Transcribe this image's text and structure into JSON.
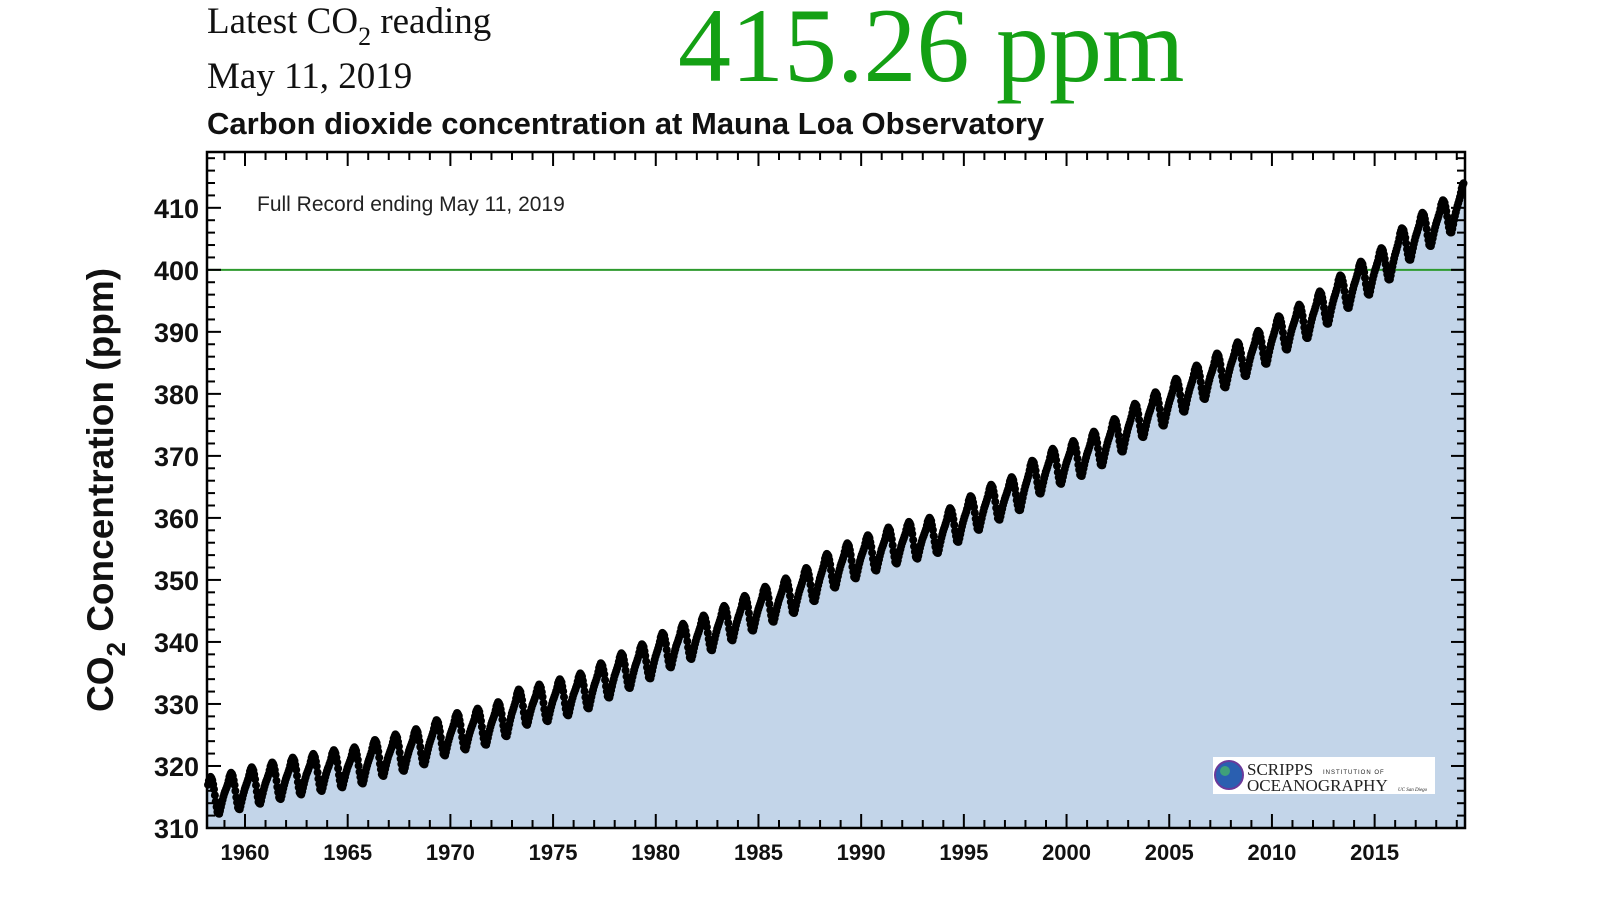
{
  "header": {
    "latest_label_pre": "Latest CO",
    "latest_label_sub": "2",
    "latest_label_post": " reading",
    "date": "May 11, 2019",
    "latest_value": "415.26 ppm",
    "value_color": "#14a014"
  },
  "chart_data": {
    "type": "scatter",
    "title": "Carbon dioxide concentration at Mauna Loa Observatory",
    "annotation": "Full Record ending May 11, 2019",
    "xlabel": "",
    "ylabel_pre": "CO",
    "ylabel_sub": "2",
    "ylabel_post": " Concentration (ppm)",
    "xlim": [
      1958.15,
      2019.4
    ],
    "ylim": [
      310,
      419
    ],
    "x_ticks": [
      1960,
      1965,
      1970,
      1975,
      1980,
      1985,
      1990,
      1995,
      2000,
      2005,
      2010,
      2015
    ],
    "x_tick_labels": [
      "1960",
      "1965",
      "1970",
      "1975",
      "1980",
      "1985",
      "1990",
      "1995",
      "2000",
      "2005",
      "2010",
      "2015"
    ],
    "y_ticks": [
      310,
      320,
      330,
      340,
      350,
      360,
      370,
      380,
      390,
      400,
      410
    ],
    "y_tick_labels": [
      "310",
      "320",
      "330",
      "340",
      "350",
      "360",
      "370",
      "380",
      "390",
      "400",
      "410"
    ],
    "reference_line": {
      "y": 400,
      "color": "#2e9a2e"
    },
    "fill_color": "#c3d5e9",
    "marker_color": "#000000",
    "grid": false,
    "series_years": [
      1958,
      1959,
      1960,
      1961,
      1962,
      1963,
      1964,
      1965,
      1966,
      1967,
      1968,
      1969,
      1970,
      1971,
      1972,
      1973,
      1974,
      1975,
      1976,
      1977,
      1978,
      1979,
      1980,
      1981,
      1982,
      1983,
      1984,
      1985,
      1986,
      1987,
      1988,
      1989,
      1990,
      1991,
      1992,
      1993,
      1994,
      1995,
      1996,
      1997,
      1998,
      1999,
      2000,
      2001,
      2002,
      2003,
      2004,
      2005,
      2006,
      2007,
      2008,
      2009,
      2010,
      2011,
      2012,
      2013,
      2014,
      2015,
      2016,
      2017,
      2018,
      2019
    ],
    "annual_mean_ppm": [
      315.3,
      315.97,
      316.91,
      317.64,
      318.45,
      318.99,
      319.62,
      320.04,
      321.37,
      322.18,
      323.05,
      324.62,
      325.68,
      326.32,
      327.45,
      329.68,
      330.18,
      331.11,
      332.04,
      333.83,
      335.4,
      336.84,
      338.75,
      340.11,
      341.45,
      343.05,
      344.65,
      346.12,
      347.42,
      349.19,
      351.57,
      353.12,
      354.39,
      355.61,
      356.45,
      357.1,
      358.83,
      360.82,
      362.61,
      363.73,
      366.7,
      368.38,
      369.55,
      371.14,
      373.28,
      375.8,
      377.52,
      379.8,
      381.9,
      383.79,
      385.6,
      387.43,
      389.9,
      391.65,
      393.85,
      396.52,
      398.65,
      400.83,
      404.24,
      406.55,
      408.52,
      411.4
    ],
    "seasonal_offset_ppm": [
      0.0,
      0.65,
      1.4,
      2.6,
      3.1,
      2.4,
      0.8,
      -1.3,
      -3.0,
      -3.2,
      -2.0,
      -0.9
    ],
    "record_start": 1958.2,
    "record_end": 2019.36
  },
  "logo": {
    "line1": "SCRIPPS",
    "line1_small": "INSTITUTION OF",
    "line2": "OCEANOGRAPHY",
    "line2_small": "UC San Diego"
  }
}
